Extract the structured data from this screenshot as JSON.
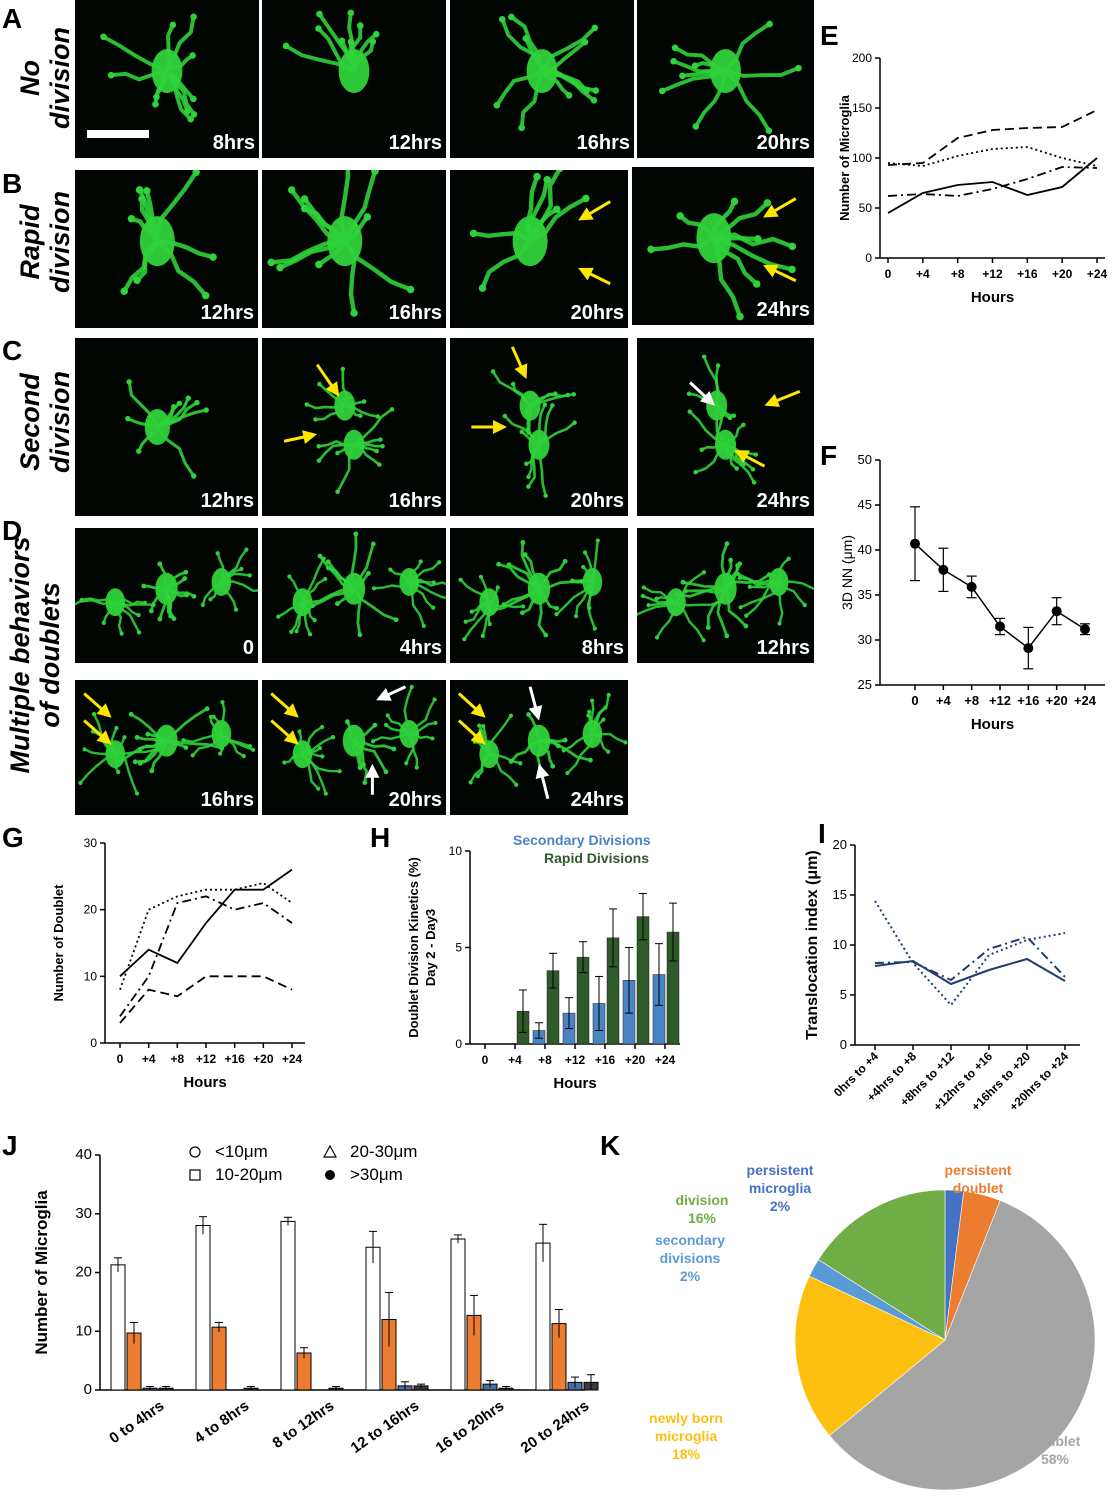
{
  "panels": {
    "A": {
      "letter": "A",
      "row_label": [
        "No",
        "division"
      ],
      "timepoints": [
        "8hrs",
        "12hrs",
        "16hrs",
        "20hrs"
      ]
    },
    "B": {
      "letter": "B",
      "row_label": [
        "Rapid",
        "division"
      ],
      "timepoints": [
        "12hrs",
        "16hrs",
        "20hrs",
        "24hrs"
      ]
    },
    "C": {
      "letter": "C",
      "row_label": [
        "Second",
        "division"
      ],
      "timepoints": [
        "12hrs",
        "16hrs",
        "20hrs",
        "24hrs"
      ]
    },
    "D": {
      "letter": "D",
      "row_label": [
        "Multiple behaviors",
        "of doublets"
      ],
      "timepoints": [
        "0",
        "4hrs",
        "8hrs",
        "12hrs",
        "16hrs",
        "20hrs",
        "24hrs"
      ]
    },
    "E": {
      "letter": "E"
    },
    "F": {
      "letter": "F"
    },
    "G": {
      "letter": "G"
    },
    "H": {
      "letter": "H"
    },
    "I": {
      "letter": "I"
    },
    "J": {
      "letter": "J"
    },
    "K": {
      "letter": "K"
    }
  },
  "colors": {
    "microglia_green": "#2fd23a",
    "arrow_yellow": "#ffe600",
    "arrow_white": "#ffffff",
    "secondary_blue": "#4a84c4",
    "rapid_green": "#2f5a2a",
    "orange": "#ec7c30",
    "navy": "#1f3c6e",
    "pie_gray": "#a5a5a5",
    "pie_yellow": "#fdc010",
    "pie_green": "#70ad46",
    "pie_lightblue": "#5b9bd5",
    "pie_blue": "#4472c4"
  },
  "chart_data": [
    {
      "id": "E",
      "type": "line",
      "ylabel": "Number of Microglia",
      "xlabel": "Hours",
      "categories": [
        "0",
        "+4",
        "+8",
        "+12",
        "+16",
        "+20",
        "+24"
      ],
      "ylim": [
        0,
        200
      ],
      "yticks": [
        0,
        50,
        100,
        150,
        200
      ],
      "series": [
        {
          "style": "solid",
          "values": [
            45,
            65,
            73,
            76,
            63,
            71,
            100
          ]
        },
        {
          "style": "dashed",
          "values": [
            93,
            95,
            120,
            128,
            130,
            131,
            148
          ]
        },
        {
          "style": "dotted",
          "values": [
            95,
            92,
            102,
            109,
            111,
            100,
            92
          ]
        },
        {
          "style": "dashdot",
          "values": [
            62,
            64,
            62,
            69,
            79,
            91,
            90
          ]
        }
      ]
    },
    {
      "id": "F",
      "type": "line",
      "ylabel": "3D NN (μm)",
      "xlabel": "Hours",
      "categories": [
        "0",
        "+4",
        "+8",
        "+12",
        "+16",
        "+20",
        "+24"
      ],
      "ylim": [
        25,
        50
      ],
      "yticks": [
        25,
        30,
        35,
        40,
        45,
        50
      ],
      "series": [
        {
          "values": [
            40.7,
            37.8,
            35.9,
            31.5,
            29.1,
            33.2,
            31.2
          ],
          "errors": [
            4.1,
            2.4,
            1.2,
            0.9,
            2.3,
            1.5,
            0.6
          ]
        }
      ]
    },
    {
      "id": "G",
      "type": "line",
      "ylabel": "Number of Doublet",
      "xlabel": "Hours",
      "categories": [
        "0",
        "+4",
        "+8",
        "+12",
        "+16",
        "+20",
        "+24"
      ],
      "ylim": [
        0,
        30
      ],
      "yticks": [
        0,
        10,
        20,
        30
      ],
      "series": [
        {
          "style": "solid",
          "values": [
            10,
            14,
            12,
            18,
            23,
            23,
            26
          ]
        },
        {
          "style": "dashed",
          "values": [
            3,
            8,
            7,
            10,
            10,
            10,
            8
          ]
        },
        {
          "style": "dotted",
          "values": [
            8,
            20,
            22,
            23,
            23,
            24,
            21
          ]
        },
        {
          "style": "dashdot",
          "values": [
            4,
            10,
            21,
            22,
            20,
            21,
            18
          ]
        }
      ]
    },
    {
      "id": "H",
      "type": "bar",
      "ylabel": "Doublet Division Kinetics (%) Day 2 - Day3",
      "xlabel": "Hours",
      "categories": [
        "0",
        "+4",
        "+8",
        "+12",
        "+16",
        "+20",
        "+24"
      ],
      "ylim": [
        0,
        10
      ],
      "yticks": [
        0,
        5,
        10
      ],
      "legend": [
        "Secondary Divisions",
        "Rapid Divisions"
      ],
      "series": [
        {
          "name": "Secondary Divisions",
          "values": [
            0,
            0,
            0.7,
            1.6,
            2.1,
            3.3,
            3.6
          ],
          "errors": [
            0,
            0,
            0.4,
            0.8,
            1.4,
            1.7,
            1.6
          ]
        },
        {
          "name": "Rapid Divisions",
          "values": [
            0,
            1.7,
            3.8,
            4.5,
            5.5,
            6.6,
            5.8
          ],
          "errors": [
            0,
            1.1,
            0.9,
            0.8,
            1.5,
            1.2,
            1.5
          ]
        }
      ]
    },
    {
      "id": "I",
      "type": "line",
      "ylabel": "Translocation index (μm)",
      "categories": [
        "0hrs to +4",
        "+4hrs to  +8",
        "+8hrs to  +12",
        "+12hrs to +16",
        "+16hrs to +20",
        "+20hrs to +24"
      ],
      "ylim": [
        0,
        20
      ],
      "yticks": [
        0,
        5,
        10,
        15,
        20
      ],
      "series": [
        {
          "style": "solid",
          "values": [
            7.9,
            8.4,
            6.1,
            7.5,
            8.6,
            6.4
          ]
        },
        {
          "style": "dotted",
          "values": [
            14.4,
            8.2,
            4.0,
            9.0,
            10.5,
            11.2
          ]
        },
        {
          "style": "dashdot",
          "values": [
            8.2,
            8.3,
            6.5,
            9.6,
            10.8,
            6.8
          ]
        }
      ]
    },
    {
      "id": "J",
      "type": "bar",
      "ylabel": "Number of Microglia",
      "categories": [
        "0 to 4hrs",
        "4 to 8hrs",
        "8 to 12hrs",
        "12 to 16hrs",
        "16 to 20hrs",
        "20 to 24hrs"
      ],
      "ylim": [
        0,
        40
      ],
      "yticks": [
        0,
        10,
        20,
        30,
        40
      ],
      "legend": [
        "<10μm",
        "10-20μm",
        "20-30μm",
        ">30μm"
      ],
      "series": [
        {
          "name": "<10μm",
          "values": [
            21.3,
            28.0,
            28.7,
            24.3,
            25.7,
            25.0
          ],
          "errors": [
            1.2,
            1.5,
            0.7,
            2.7,
            0.7,
            3.2
          ]
        },
        {
          "name": "10-20μm",
          "values": [
            9.7,
            10.7,
            6.3,
            12.0,
            12.7,
            11.3
          ],
          "errors": [
            1.8,
            0.8,
            0.9,
            4.6,
            3.4,
            2.4
          ]
        },
        {
          "name": "20-30μm",
          "values": [
            0.3,
            0,
            0,
            0.7,
            1.0,
            1.3
          ],
          "errors": [
            0.3,
            0,
            0,
            0.7,
            0.6,
            0.9
          ]
        },
        {
          "name": ">30μm",
          "values": [
            0.3,
            0.3,
            0.3,
            0.7,
            0.3,
            1.3
          ],
          "errors": [
            0.3,
            0.3,
            0.3,
            0.3,
            0.3,
            1.3
          ]
        }
      ]
    },
    {
      "id": "K",
      "type": "pie",
      "slices": [
        {
          "label": "persistent microglia",
          "value": 2,
          "text": "2%",
          "color": "#4472c4"
        },
        {
          "label": "persistent doublet",
          "value": 4,
          "text": "4%",
          "color": "#ec7c30"
        },
        {
          "label": "doublet",
          "value": 58,
          "text": "58%",
          "color": "#a5a5a5"
        },
        {
          "label": "newly born microglia",
          "value": 18,
          "text": "18%",
          "color": "#fdc010"
        },
        {
          "label": "secondary divisions",
          "value": 2,
          "text": "2%",
          "color": "#5b9bd5"
        },
        {
          "label": "division",
          "value": 16,
          "text": "16%",
          "color": "#70ad46"
        }
      ]
    }
  ]
}
